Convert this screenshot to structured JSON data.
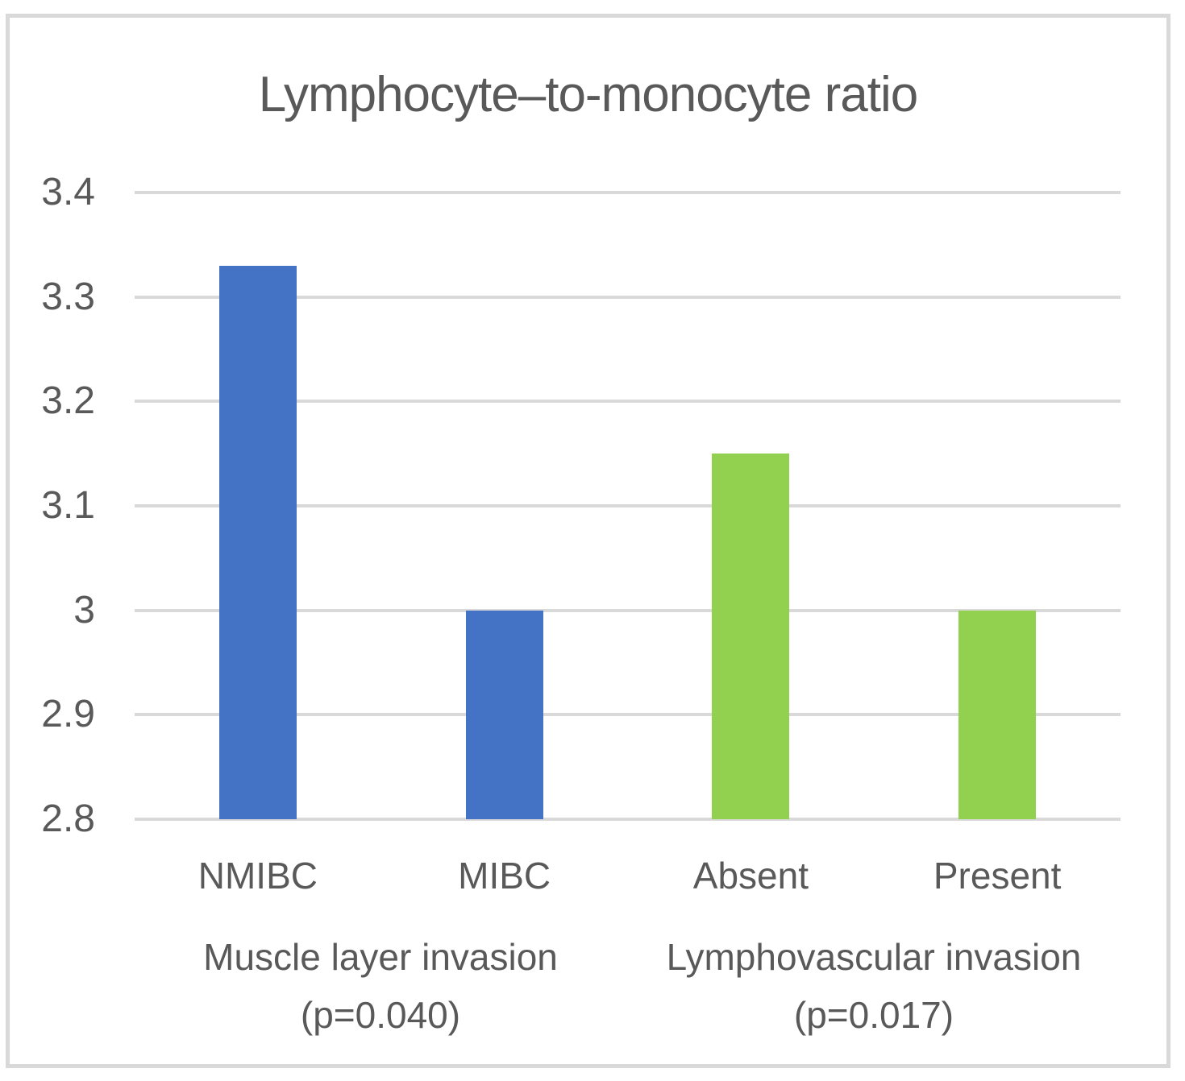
{
  "chart_data": {
    "type": "bar",
    "title": "Lymphocyte–to-monocyte ratio",
    "categories": [
      "NMIBC",
      "MIBC",
      "Absent",
      "Present"
    ],
    "values": [
      3.33,
      3.0,
      3.15,
      3.0
    ],
    "bar_colors": [
      "#4472C4",
      "#4472C4",
      "#92D050",
      "#92D050"
    ],
    "groups": [
      {
        "label": "Muscle layer invasion",
        "p_value_label": "(p=0.040)",
        "category_indices": [
          0,
          1
        ]
      },
      {
        "label": "Lymphovascular invasion",
        "p_value_label": "(p=0.017)",
        "category_indices": [
          2,
          3
        ]
      }
    ],
    "ylim": [
      2.8,
      3.4
    ],
    "ytick_labels": [
      "3.4",
      "3.3",
      "3.2",
      "3.1",
      "3",
      "2.9",
      "2.8"
    ],
    "grid": true,
    "legend_position": "none",
    "xlabel": "",
    "ylabel": ""
  },
  "colors": {
    "blue_bar": "#4472C4",
    "green_bar": "#92D050",
    "gridline": "#D9D9D9",
    "frame_border": "#D9D9D9",
    "text": "#595959",
    "background": "#FFFFFF"
  }
}
